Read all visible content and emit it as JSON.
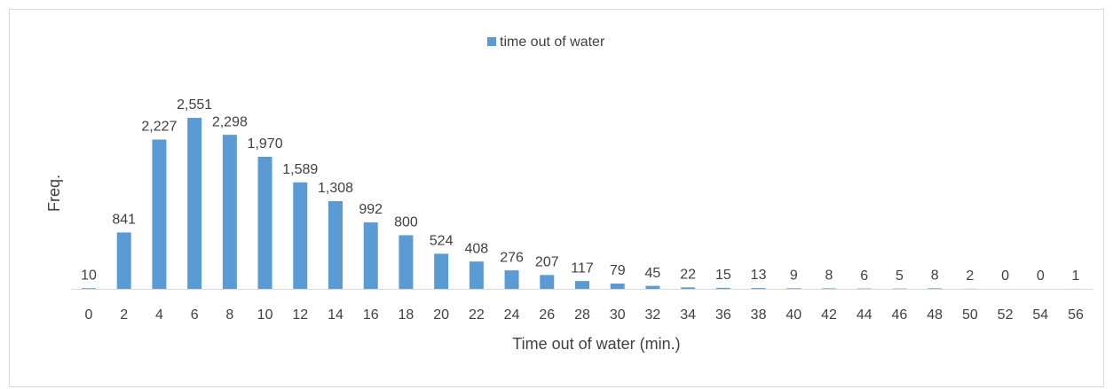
{
  "chart_data": {
    "type": "bar",
    "legend": "time out of water",
    "x_label": "Time out of water (min.)",
    "y_label": "Freq.",
    "categories": [
      "0",
      "2",
      "4",
      "6",
      "8",
      "10",
      "12",
      "14",
      "16",
      "18",
      "20",
      "22",
      "24",
      "26",
      "28",
      "30",
      "32",
      "34",
      "36",
      "38",
      "40",
      "42",
      "44",
      "46",
      "48",
      "50",
      "52",
      "54",
      "56"
    ],
    "values": [
      10,
      841,
      2227,
      2551,
      2298,
      1970,
      1589,
      1308,
      992,
      800,
      524,
      408,
      276,
      207,
      117,
      79,
      45,
      22,
      15,
      13,
      9,
      8,
      6,
      5,
      8,
      2,
      0,
      0,
      1
    ],
    "value_labels": [
      "10",
      "841",
      "2,227",
      "2,551",
      "2,298",
      "1,970",
      "1,589",
      "1,308",
      "992",
      "800",
      "524",
      "408",
      "276",
      "207",
      "117",
      "79",
      "45",
      "22",
      "15",
      "13",
      "9",
      "8",
      "6",
      "5",
      "8",
      "2",
      "0",
      "0",
      "1"
    ],
    "color": "#5b9bd5",
    "ylim": [
      0,
      3000
    ],
    "legend_position": "top"
  }
}
